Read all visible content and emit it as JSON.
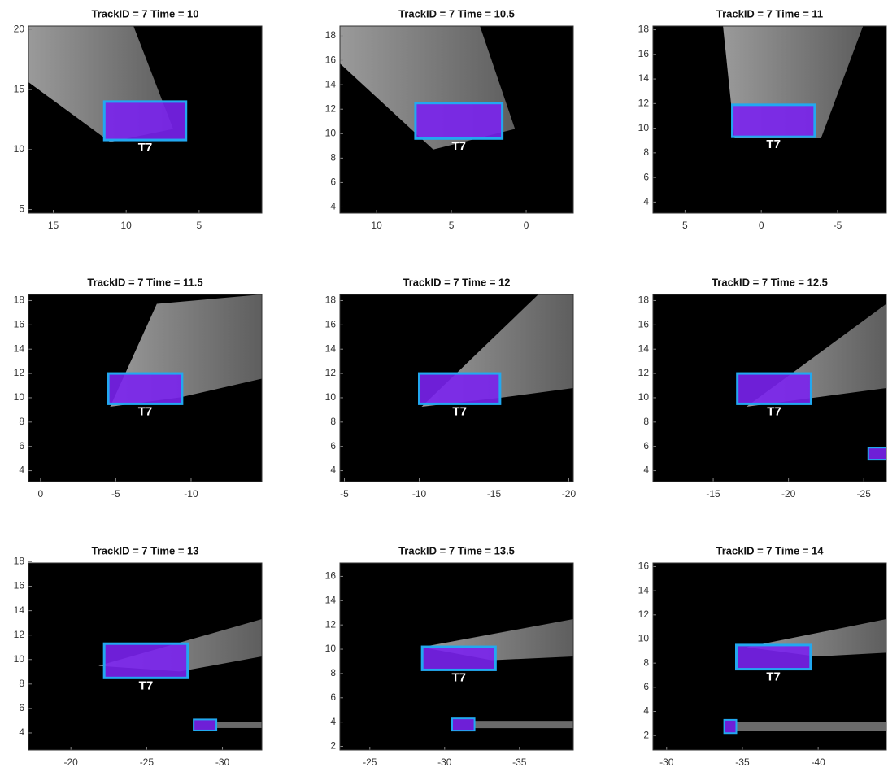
{
  "chart_data": [
    {
      "type": "image",
      "title": "TrackID = 7 Time = 10",
      "xlim": [
        16.7,
        0.7
      ],
      "ylim": [
        4.7,
        20.3
      ],
      "xticks": [
        15,
        10,
        5
      ],
      "yticks": [
        5,
        10,
        15,
        20
      ],
      "boxes": [
        {
          "label": "T7",
          "x": [
            11.5,
            5.9
          ],
          "y": [
            14.0,
            10.8
          ]
        }
      ]
    },
    {
      "type": "image",
      "title": "TrackID = 7 Time = 10.5",
      "xlim": [
        12.45,
        -3.15
      ],
      "ylim": [
        3.5,
        18.8
      ],
      "xticks": [
        10,
        5,
        0
      ],
      "yticks": [
        4,
        6,
        8,
        10,
        12,
        14,
        16,
        18
      ],
      "boxes": [
        {
          "label": "T7",
          "x": [
            7.4,
            1.6
          ],
          "y": [
            12.5,
            9.6
          ]
        }
      ]
    },
    {
      "type": "image",
      "title": "TrackID = 7 Time = 11",
      "xlim": [
        7.1,
        -8.2
      ],
      "ylim": [
        3.1,
        18.3
      ],
      "xticks": [
        5,
        0,
        -5
      ],
      "yticks": [
        4,
        6,
        8,
        10,
        12,
        14,
        16,
        18
      ],
      "boxes": [
        {
          "label": "T7",
          "x": [
            1.9,
            -3.5
          ],
          "y": [
            11.9,
            9.3
          ]
        }
      ]
    },
    {
      "type": "image",
      "title": "TrackID = 7 Time = 11.5",
      "xlim": [
        0.8,
        -14.7
      ],
      "ylim": [
        3.1,
        18.5
      ],
      "xticks": [
        0,
        -5,
        -10
      ],
      "yticks": [
        4,
        6,
        8,
        10,
        12,
        14,
        16,
        18
      ],
      "boxes": [
        {
          "label": "T7",
          "x": [
            -4.5,
            -9.4
          ],
          "y": [
            12.0,
            9.5
          ]
        }
      ]
    },
    {
      "type": "image",
      "title": "TrackID = 7 Time = 12",
      "xlim": [
        -4.7,
        -20.3
      ],
      "ylim": [
        3.1,
        18.5
      ],
      "xticks": [
        -5,
        -10,
        -15,
        -20
      ],
      "yticks": [
        4,
        6,
        8,
        10,
        12,
        14,
        16,
        18
      ],
      "boxes": [
        {
          "label": "T7",
          "x": [
            -10.0,
            -15.4
          ],
          "y": [
            12.0,
            9.5
          ]
        }
      ]
    },
    {
      "type": "image",
      "title": "TrackID = 7 Time = 12.5",
      "xlim": [
        -11.0,
        -26.5
      ],
      "ylim": [
        3.1,
        18.5
      ],
      "xticks": [
        -15,
        -20,
        -25
      ],
      "yticks": [
        4,
        6,
        8,
        10,
        12,
        14,
        16,
        18
      ],
      "boxes": [
        {
          "label": "T7",
          "x": [
            -16.6,
            -21.5
          ],
          "y": [
            12.0,
            9.5
          ]
        },
        {
          "x": [
            -25.3,
            -26.5
          ],
          "y": [
            5.9,
            4.9
          ]
        }
      ]
    },
    {
      "type": "image",
      "title": "TrackID = 7 Time = 13",
      "xlim": [
        -17.2,
        -32.6
      ],
      "ylim": [
        2.6,
        17.9
      ],
      "xticks": [
        -20,
        -25,
        -30
      ],
      "yticks": [
        4,
        6,
        8,
        10,
        12,
        14,
        16,
        18
      ],
      "boxes": [
        {
          "label": "T7",
          "x": [
            -22.2,
            -27.7
          ],
          "y": [
            11.3,
            8.5
          ]
        },
        {
          "x": [
            -28.1,
            -29.6
          ],
          "y": [
            5.1,
            4.2
          ]
        }
      ]
    },
    {
      "type": "image",
      "title": "TrackID = 7 Time = 13.5",
      "xlim": [
        -23.0,
        -38.6
      ],
      "ylim": [
        1.7,
        17.1
      ],
      "xticks": [
        -25,
        -30,
        -35
      ],
      "yticks": [
        2,
        4,
        6,
        8,
        10,
        12,
        14,
        16
      ],
      "boxes": [
        {
          "label": "T7",
          "x": [
            -28.5,
            -33.4
          ],
          "y": [
            10.2,
            8.3
          ]
        },
        {
          "x": [
            -30.5,
            -32.0
          ],
          "y": [
            4.3,
            3.3
          ]
        }
      ]
    },
    {
      "type": "image",
      "title": "TrackID = 7 Time = 14",
      "xlim": [
        -29.1,
        -44.5
      ],
      "ylim": [
        0.8,
        16.3
      ],
      "xticks": [
        -30,
        -35,
        -40
      ],
      "yticks": [
        2,
        4,
        6,
        8,
        10,
        12,
        14,
        16
      ],
      "boxes": [
        {
          "label": "T7",
          "x": [
            -34.6,
            -39.5
          ],
          "y": [
            9.5,
            7.5
          ]
        },
        {
          "x": [
            -33.8,
            -34.6
          ],
          "y": [
            3.3,
            2.2
          ]
        }
      ]
    }
  ]
}
